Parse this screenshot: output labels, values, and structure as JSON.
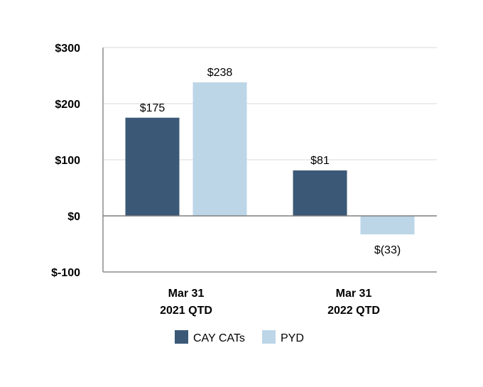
{
  "chart_data": {
    "type": "bar",
    "categories": [
      [
        "Mar 31",
        "2021 QTD"
      ],
      [
        "Mar 31",
        "2022 QTD"
      ]
    ],
    "series": [
      {
        "name": "CAY CATs",
        "color": "#3b5977",
        "values": [
          175,
          81
        ],
        "labels": [
          "$175",
          "$81"
        ]
      },
      {
        "name": "PYD",
        "color": "#bcd6e8",
        "values": [
          238,
          -33
        ],
        "labels": [
          "$238",
          "$(33)"
        ]
      }
    ],
    "yticks": [
      {
        "value": 300,
        "label": "$300"
      },
      {
        "value": 200,
        "label": "$200"
      },
      {
        "value": 100,
        "label": "$100"
      },
      {
        "value": 0,
        "label": "$0"
      },
      {
        "value": -100,
        "label": "$-100"
      }
    ],
    "ylim": [
      -100,
      300
    ],
    "grid": true,
    "legend_position": "bottom-center"
  }
}
